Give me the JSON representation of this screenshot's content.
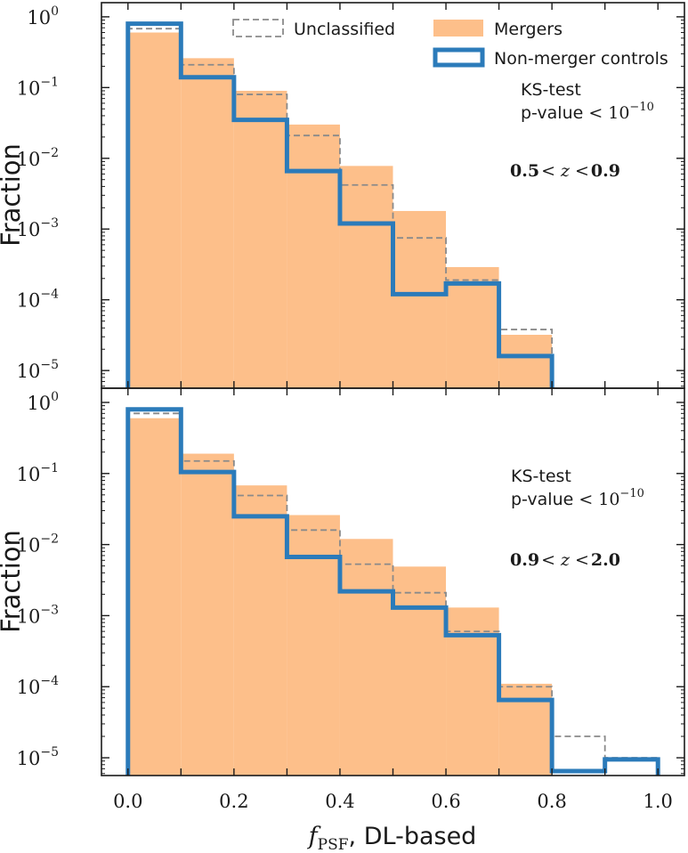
{
  "chart_data": [
    {
      "type": "histogram",
      "scale_y": "log",
      "ylabel": "Fraction",
      "xlim": [
        -0.05,
        1.05
      ],
      "ylim_exponents": [
        -5.25,
        0.2
      ],
      "bin_edges": [
        0.0,
        0.1,
        0.2,
        0.3,
        0.4,
        0.5,
        0.6,
        0.7,
        0.8,
        0.9,
        1.0
      ],
      "annotation": {
        "test_label": "KS-test",
        "pvalue_label": "p-value",
        "pvalue_relation": "<",
        "pvalue_base": "10",
        "pvalue_exponent": "−10",
        "redshift_low": "0.5",
        "redshift_lt1": "<",
        "redshift_var": "z",
        "redshift_lt2": "<",
        "redshift_high": "0.9"
      },
      "series": [
        {
          "name": "Mergers",
          "style": "filled",
          "color": "#fdbf8a",
          "values": [
            0.6,
            0.26,
            0.09,
            0.03,
            0.0078,
            0.0018,
            0.00029,
            3.2e-05,
            null,
            null
          ]
        },
        {
          "name": "Unclassified",
          "style": "dashed",
          "color": "#8a8a8a",
          "values": [
            0.68,
            0.21,
            0.08,
            0.021,
            0.0042,
            0.00075,
            0.00019,
            3.8e-05,
            null,
            null
          ]
        },
        {
          "name": "Non-merger controls",
          "style": "step",
          "color": "#2b7bba",
          "values": [
            0.8,
            0.14,
            0.035,
            0.0066,
            0.0012,
            0.00012,
            0.00017,
            1.6e-05,
            null,
            null
          ]
        }
      ]
    },
    {
      "type": "histogram",
      "scale_y": "log",
      "ylabel": "Fraction",
      "xlabel_var": "f",
      "xlabel_sub": "PSF",
      "xlabel_rest": ", DL-based",
      "xlim": [
        -0.05,
        1.05
      ],
      "ylim_exponents": [
        -5.25,
        0.2
      ],
      "x_ticks": [
        "0.0",
        "0.2",
        "0.4",
        "0.6",
        "0.8",
        "1.0"
      ],
      "bin_edges": [
        0.0,
        0.1,
        0.2,
        0.3,
        0.4,
        0.5,
        0.6,
        0.7,
        0.8,
        0.9,
        1.0
      ],
      "annotation": {
        "test_label": "KS-test",
        "pvalue_label": "p-value",
        "pvalue_relation": "<",
        "pvalue_base": "10",
        "pvalue_exponent": "−10",
        "redshift_low": "0.9",
        "redshift_lt1": "<",
        "redshift_var": "z",
        "redshift_lt2": "<",
        "redshift_high": "2.0"
      },
      "series": [
        {
          "name": "Mergers",
          "style": "filled",
          "color": "#fdbf8a",
          "values": [
            0.6,
            0.19,
            0.068,
            0.026,
            0.012,
            0.0049,
            0.0013,
            0.00011,
            null,
            null
          ]
        },
        {
          "name": "Unclassified",
          "style": "dashed",
          "color": "#8a8a8a",
          "values": [
            0.7,
            0.15,
            0.049,
            0.016,
            0.0053,
            0.0021,
            0.0006,
            0.0001,
            2e-05,
            1e-05
          ]
        },
        {
          "name": "Non-merger controls",
          "style": "step",
          "color": "#2b7bba",
          "values": [
            0.8,
            0.105,
            0.025,
            0.0067,
            0.0022,
            0.0013,
            0.00053,
            6.5e-05,
            6.5e-06,
            9.5e-06
          ]
        }
      ]
    }
  ],
  "legend": {
    "position": "top",
    "entries": [
      "Unclassified",
      "Mergers",
      "Non-merger controls"
    ]
  },
  "y_ticks": {
    "base": "10",
    "exponents": [
      "0",
      "−1",
      "−2",
      "−3",
      "−4",
      "−5"
    ]
  }
}
